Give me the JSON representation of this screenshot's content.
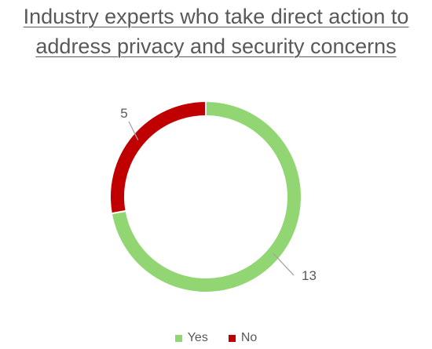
{
  "chart_data": {
    "type": "pie",
    "variant": "donut",
    "title": "Industry experts who take direct action to address privacy and security concerns",
    "title_lines": [
      "Industry experts who take direct action to",
      "address privacy and security concerns"
    ],
    "categories": [
      "Yes",
      "No"
    ],
    "values": [
      13,
      5
    ],
    "colors": [
      "#92d674",
      "#c00000"
    ],
    "data_labels": [
      "13",
      "5"
    ],
    "legend_position": "bottom"
  }
}
